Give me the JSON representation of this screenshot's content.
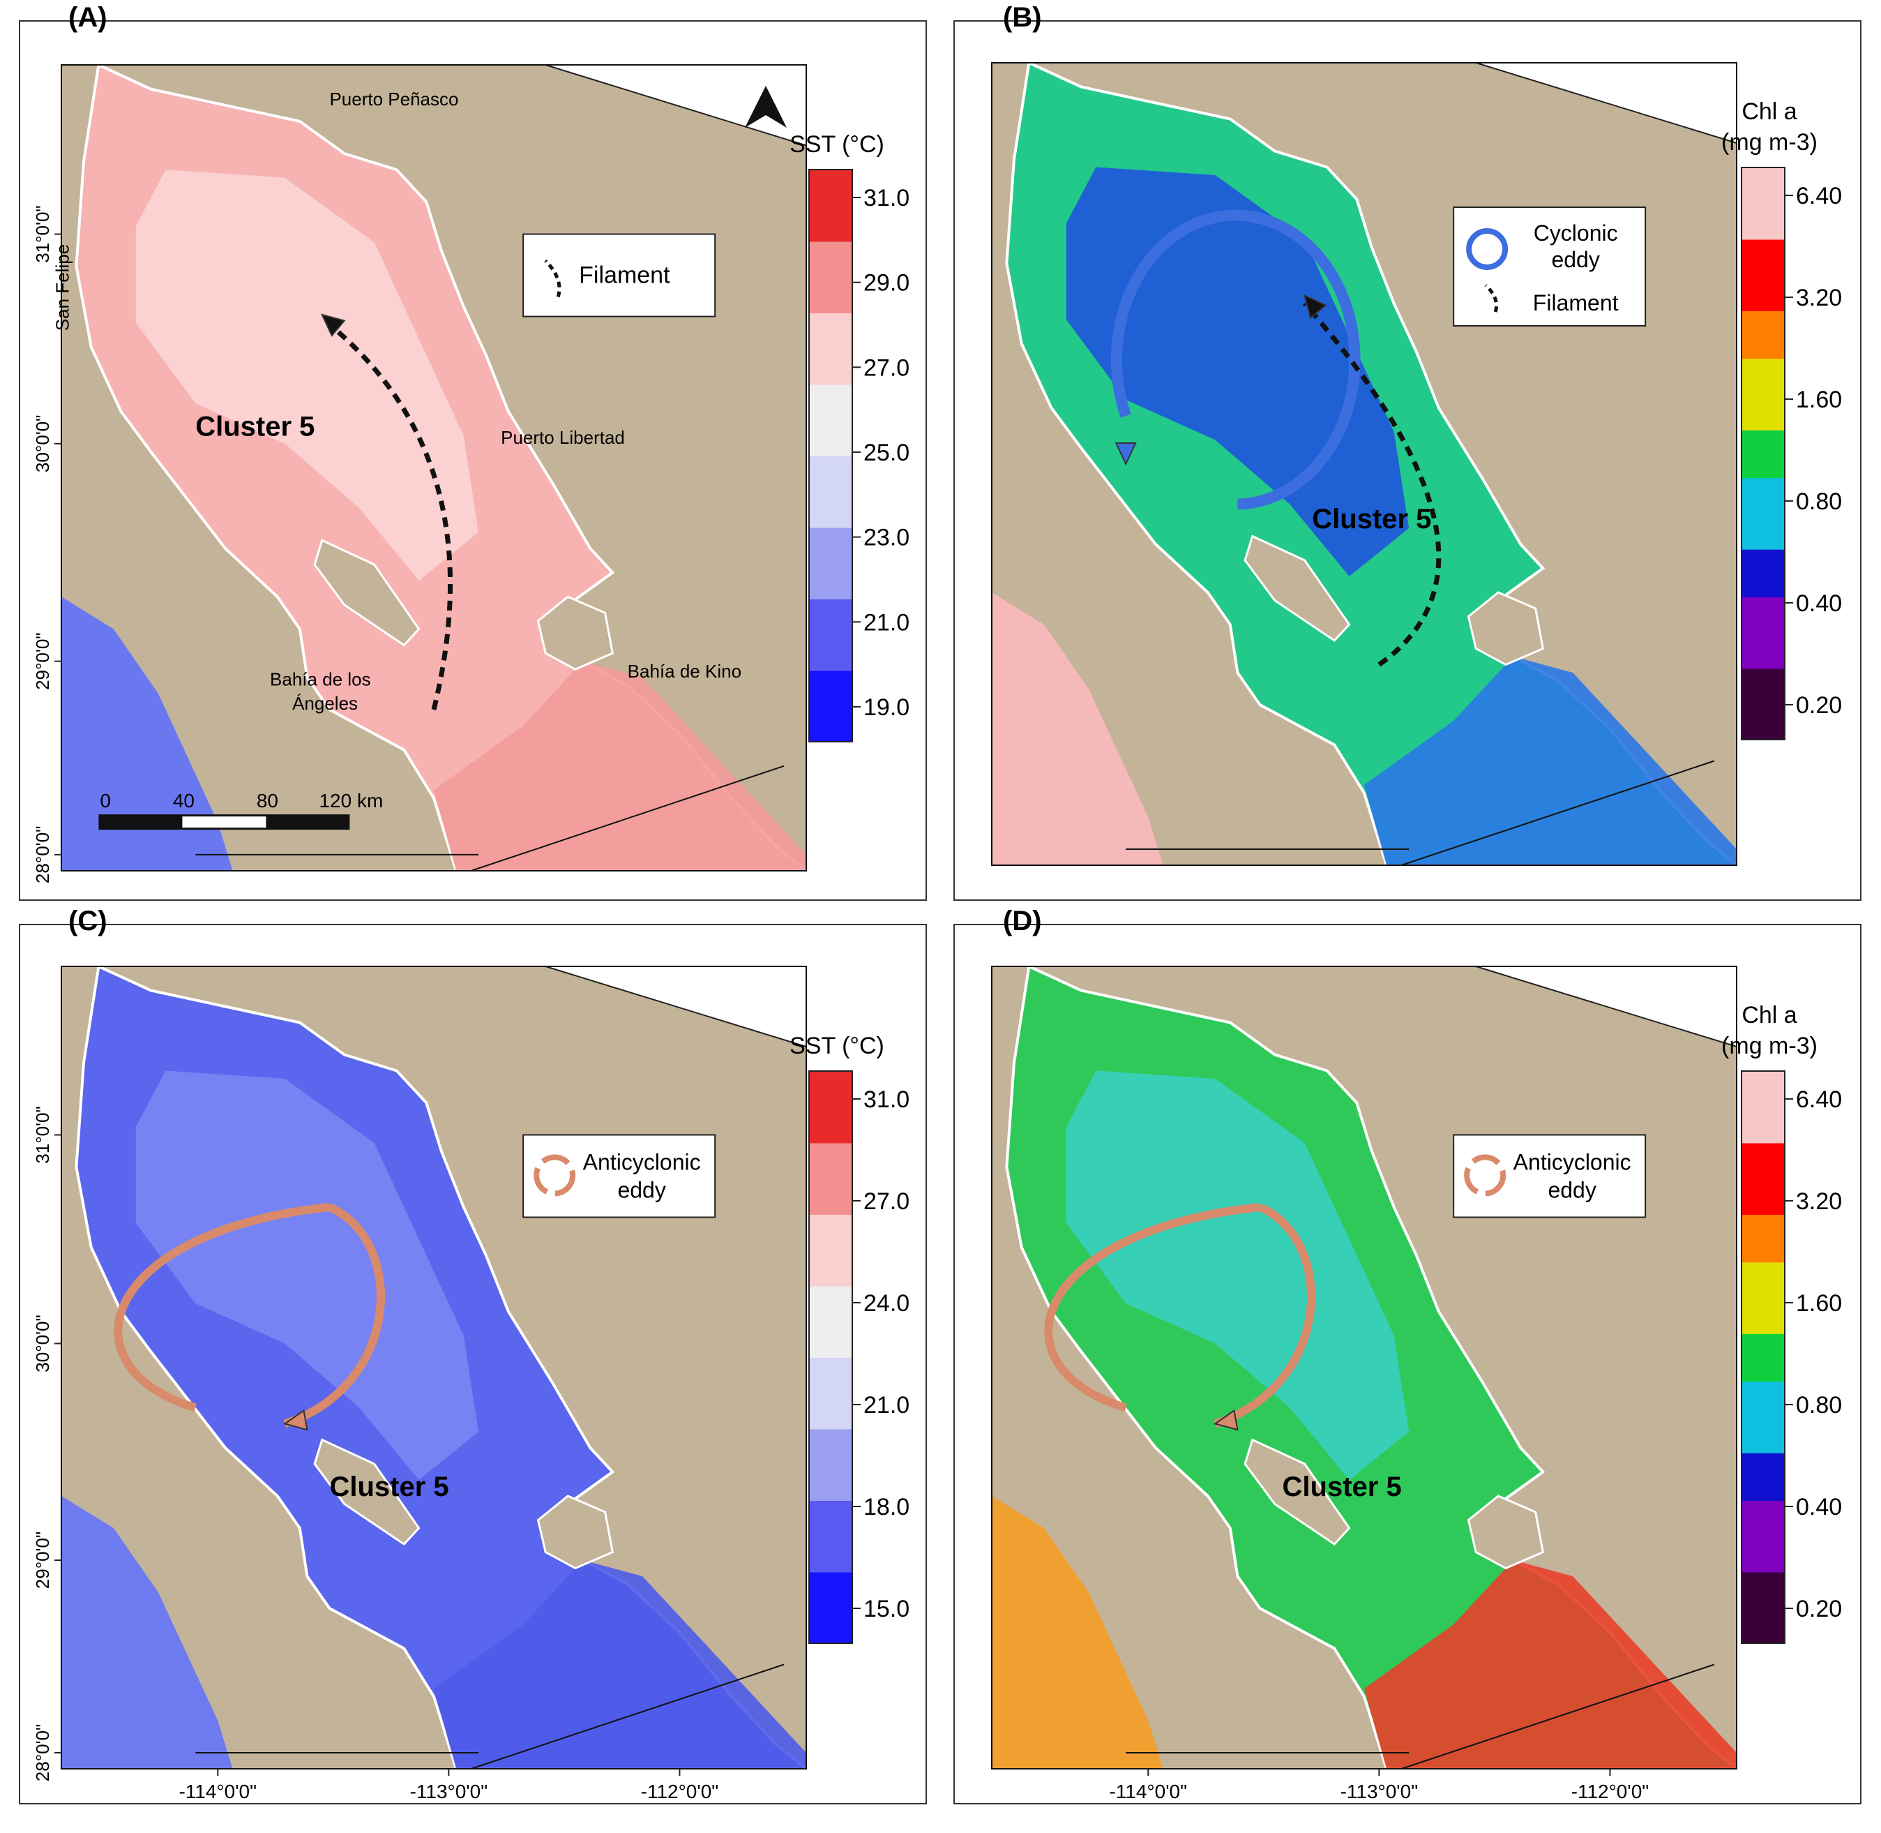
{
  "panels": [
    {
      "id": "A",
      "label": "(A)",
      "variable": "sst",
      "colorbar_title": [
        "SST (°C)"
      ],
      "colorbar_ticks": [
        "31.0",
        "29.0",
        "27.0",
        "25.0",
        "23.0",
        "21.0",
        "19.0"
      ],
      "cluster_label": "Cluster 5",
      "legend_items": [
        "Filament"
      ],
      "feature": "filament",
      "colors": {
        "gulf": "#f7b2b2",
        "gulf_inner": "#fbd6d6",
        "ocean": "#6a78f0",
        "south": "#f39a9a"
      },
      "place_names": [
        "Puerto Peñasco",
        "San Felipe",
        "Puerto Libertad",
        "Bahía de los",
        "Ángeles",
        "Bahía de Kino"
      ],
      "scale_bar": [
        "0",
        "40",
        "80",
        "120 km"
      ],
      "lat_labels": [
        "31°0'0\"",
        "30°0'0\"",
        "29°0'0\"",
        "28°0'0\""
      ],
      "lon_labels": []
    },
    {
      "id": "B",
      "label": "(B)",
      "variable": "chl",
      "colorbar_title": [
        "Chl a",
        "(mg m-3)"
      ],
      "colorbar_ticks": [
        "6.40",
        "3.20",
        "1.60",
        "0.80",
        "0.40",
        "0.20"
      ],
      "cluster_label": "Cluster 5",
      "legend_items": [
        "Cyclonic",
        "eddy",
        "Filament"
      ],
      "feature": "cyclonic",
      "colors": {
        "gulf": "#22c98a",
        "gulf_inner": "#1f4fe0",
        "ocean": "#f6b9b9",
        "south": "#2a78e6"
      },
      "place_names": [],
      "scale_bar": [],
      "lat_labels": [],
      "lon_labels": []
    },
    {
      "id": "C",
      "label": "(C)",
      "variable": "sst",
      "colorbar_title": [
        "SST (°C)"
      ],
      "colorbar_ticks": [
        "31.0",
        "27.0",
        "24.0",
        "21.0",
        "18.0",
        "15.0"
      ],
      "cluster_label": "Cluster 5",
      "legend_items": [
        "Anticyclonic",
        "eddy"
      ],
      "feature": "anticyclonic",
      "colors": {
        "gulf": "#5a66ee",
        "gulf_inner": "#7d88f2",
        "ocean": "#6d7af0",
        "south": "#4e5be8"
      },
      "place_names": [],
      "scale_bar": [],
      "lat_labels": [
        "31°0'0\"",
        "30°0'0\"",
        "29°0'0\"",
        "28°0'0\""
      ],
      "lon_labels": [
        "-114°0'0\"",
        "-113°0'0\"",
        "-112°0'0\""
      ]
    },
    {
      "id": "D",
      "label": "(D)",
      "variable": "chl",
      "colorbar_title": [
        "Chl a",
        "(mg m-3)"
      ],
      "colorbar_ticks": [
        "6.40",
        "3.20",
        "1.60",
        "0.80",
        "0.40",
        "0.20"
      ],
      "cluster_label": "Cluster 5",
      "legend_items": [
        "Anticyclonic",
        "eddy"
      ],
      "feature": "anticyclonic",
      "colors": {
        "gulf": "#2fc95a",
        "gulf_inner": "#3ad0c8",
        "ocean": "#f0a030",
        "south": "#e8402a"
      },
      "place_names": [],
      "scale_bar": [],
      "lat_labels": [],
      "lon_labels": [
        "-114°0'0\"",
        "-113°0'0\"",
        "-112°0'0\""
      ]
    }
  ],
  "colors": {
    "land": "#c3b398",
    "sst_scale": [
      "#1414ff",
      "#5a5af0",
      "#9a9ff0",
      "#d4d6f5",
      "#eeeeee",
      "#f9cfcf",
      "#f39090",
      "#e82a2a"
    ],
    "chl_scale": [
      "#3a003a",
      "#8000c0",
      "#1010d0",
      "#10c0e0",
      "#10d040",
      "#e0e000",
      "#ff8000",
      "#ff0000",
      "#f8c8c8"
    ],
    "eddy_anticyclonic": "#d98a6a",
    "eddy_cyclonic": "#3d6ee0"
  }
}
